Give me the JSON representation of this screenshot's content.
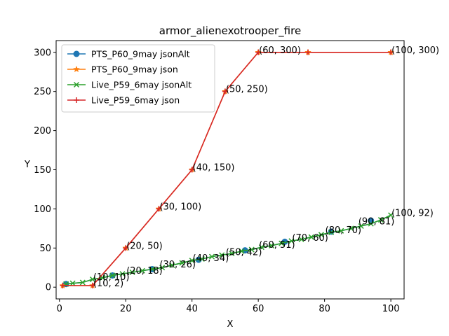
{
  "chart_data": {
    "type": "line",
    "title": "armor_alienexotrooper_fire",
    "xlabel": "X",
    "ylabel": "Y",
    "xlim": [
      -1,
      104
    ],
    "ylim": [
      -15,
      315
    ],
    "xticks": [
      0,
      20,
      40,
      60,
      80,
      100
    ],
    "yticks": [
      0,
      50,
      100,
      150,
      200,
      250,
      300
    ],
    "grid": false,
    "legend_position": "top-left",
    "series": [
      {
        "name": "PTS_P60_9may jsonAlt",
        "color": "#1f77b4",
        "marker": "circle",
        "x": [
          2,
          4,
          7,
          10,
          13,
          16,
          19,
          22,
          25,
          28,
          31,
          34,
          37,
          40,
          43,
          46,
          49,
          52,
          55,
          58,
          61,
          64,
          67,
          70,
          73,
          76,
          79,
          82,
          85,
          88,
          91,
          94,
          97,
          100
        ],
        "y": [
          4,
          5,
          6,
          10,
          12,
          15,
          17,
          19,
          21,
          23,
          25,
          28,
          31,
          34,
          36,
          39,
          41,
          43,
          46,
          48,
          51,
          53,
          56,
          59,
          61,
          64,
          67,
          70,
          72,
          75,
          78,
          81,
          86,
          92
        ],
        "marker_x": [
          2,
          16,
          28,
          42,
          56,
          68,
          82,
          94
        ],
        "marker_y": [
          4,
          15,
          23,
          35,
          47,
          58,
          71,
          85
        ]
      },
      {
        "name": "PTS_P60_9may json",
        "color": "#ff7f0e",
        "marker": "star",
        "x": [
          1,
          10,
          20,
          30,
          40,
          50,
          60,
          75,
          100
        ],
        "y": [
          2,
          2,
          50,
          100,
          150,
          250,
          300,
          300,
          300
        ]
      },
      {
        "name": "Live_P59_6may jsonAlt",
        "color": "#2ca02c",
        "marker": "x",
        "x": [
          2,
          4,
          7,
          10,
          13,
          16,
          19,
          22,
          25,
          28,
          31,
          34,
          37,
          40,
          43,
          46,
          49,
          52,
          55,
          58,
          61,
          64,
          67,
          70,
          73,
          76,
          79,
          82,
          85,
          88,
          91,
          94,
          97,
          100
        ],
        "y": [
          4,
          5,
          6,
          10,
          12,
          15,
          17,
          19,
          21,
          23,
          25,
          28,
          31,
          34,
          36,
          39,
          41,
          43,
          46,
          48,
          51,
          53,
          56,
          59,
          61,
          64,
          67,
          70,
          72,
          75,
          78,
          81,
          86,
          92
        ]
      },
      {
        "name": "Live_P59_6may json",
        "color": "#d62728",
        "marker": "plus",
        "x": [
          1,
          10,
          20,
          30,
          40,
          50,
          60,
          75,
          100
        ],
        "y": [
          2,
          2,
          50,
          100,
          150,
          250,
          300,
          300,
          300
        ]
      }
    ],
    "annotations": [
      {
        "text": "(10, 10)",
        "x": 10,
        "y": 10
      },
      {
        "text": "(10, 2)",
        "x": 10,
        "y": 2
      },
      {
        "text": "(20, 50)",
        "x": 20,
        "y": 50
      },
      {
        "text": "(20, 18)",
        "x": 20,
        "y": 18
      },
      {
        "text": "(30, 100)",
        "x": 30,
        "y": 100
      },
      {
        "text": "(30, 26)",
        "x": 30,
        "y": 26
      },
      {
        "text": "(40, 150)",
        "x": 40,
        "y": 150
      },
      {
        "text": "(40, 34)",
        "x": 40,
        "y": 34
      },
      {
        "text": "(50, 250)",
        "x": 50,
        "y": 250
      },
      {
        "text": "(50, 42)",
        "x": 50,
        "y": 42
      },
      {
        "text": "(60, 300)",
        "x": 60,
        "y": 300
      },
      {
        "text": "(60, 51)",
        "x": 60,
        "y": 51
      },
      {
        "text": "(70, 60)",
        "x": 70,
        "y": 60
      },
      {
        "text": "(80, 70)",
        "x": 80,
        "y": 70
      },
      {
        "text": "(90, 81)",
        "x": 90,
        "y": 81
      },
      {
        "text": "(100, 300)",
        "x": 100,
        "y": 300
      },
      {
        "text": "(100, 92)",
        "x": 100,
        "y": 92
      }
    ]
  }
}
